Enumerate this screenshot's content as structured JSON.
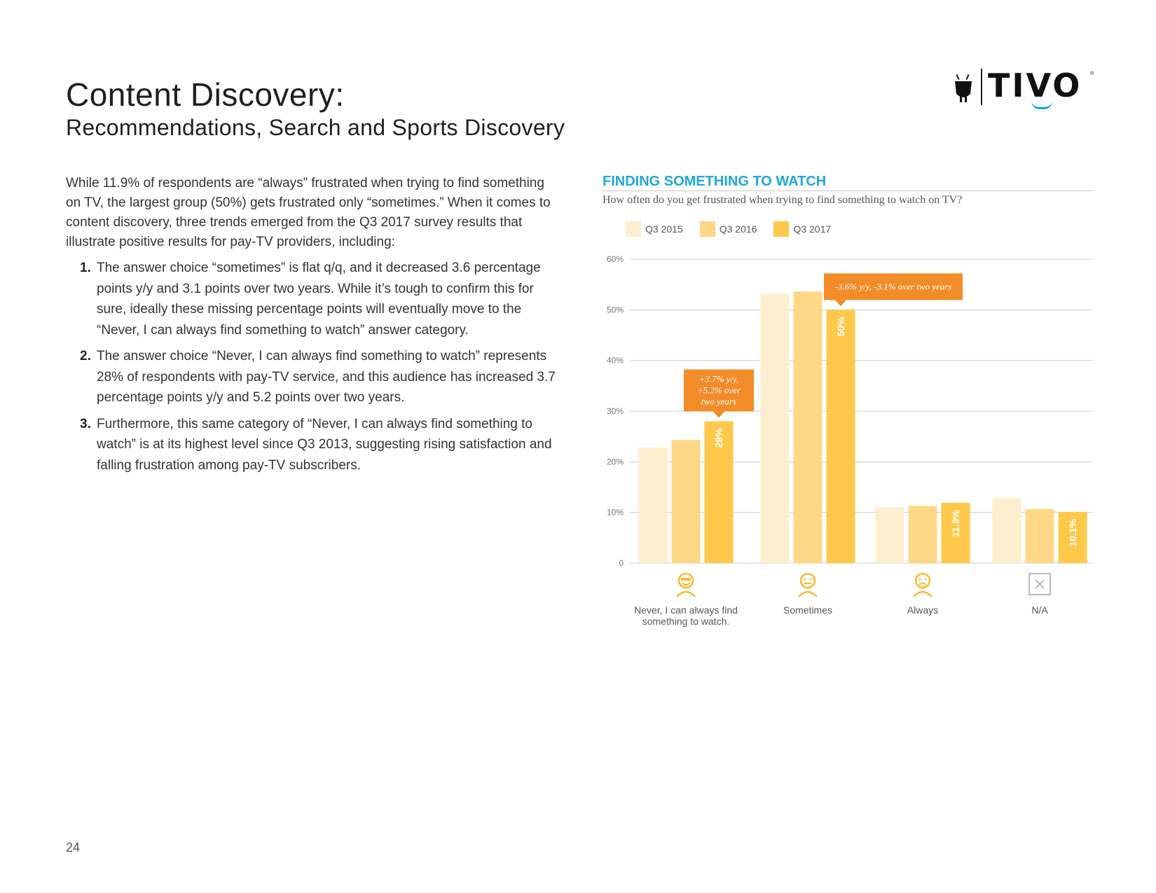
{
  "page": {
    "title": "Content Discovery:",
    "subtitle": "Recommendations, Search and Sports Discovery",
    "page_number": "24"
  },
  "logo": {
    "text": "TIVO",
    "tm": "®",
    "icon": "tivo-mascot-icon"
  },
  "body": {
    "intro": "While 11.9% of respondents are “always” frustrated when trying to find something on TV, the largest group (50%) gets frustrated only “sometimes.” When it comes to content discovery, three trends emerged from the Q3 2017 survey results that illustrate positive results for pay-TV providers, including:",
    "items": [
      {
        "num": "1.",
        "text": "The answer choice “sometimes” is flat q/q, and it decreased 3.6 percentage points y/y and 3.1 points over two years. While it’s tough to confirm this for sure, ideally these missing percentage points will eventually move to the “Never, I can always find something to watch” answer category."
      },
      {
        "num": "2.",
        "text": "The answer choice “Never, I can always find something to watch” represents 28% of respondents with pay-TV service, and this audience has increased 3.7 percentage points y/y and 5.2 points over two years."
      },
      {
        "num": "3.",
        "text": "Furthermore, this same category of “Never, I can always find something to watch” is at its highest level since Q3 2013, suggesting rising satisfaction and falling frustration among pay-TV subscribers."
      }
    ]
  },
  "chart_data": {
    "type": "bar",
    "title": "FINDING SOMETHING TO WATCH",
    "subtitle": "How often do you get frustrated when trying to find something to watch on TV?",
    "categories": [
      "Never, I can always find something to watch.",
      "Sometimes",
      "Always",
      "N/A"
    ],
    "category_icons": [
      "happy-face-icon",
      "neutral-face-icon",
      "sad-face-icon",
      "x-box-icon"
    ],
    "series": [
      {
        "name": "Q3 2015",
        "color": "#fdeecf",
        "values": [
          22.8,
          53.1,
          11.0,
          12.9
        ]
      },
      {
        "name": "Q3 2016",
        "color": "#fed887",
        "values": [
          24.3,
          53.6,
          11.3,
          10.7
        ]
      },
      {
        "name": "Q3 2017",
        "color": "#fec84a",
        "values": [
          28.0,
          50.0,
          11.9,
          10.1
        ]
      }
    ],
    "data_labels": [
      "28%",
      "50%",
      "11.9%",
      "10.1%"
    ],
    "y_ticks": [
      "0",
      "10%",
      "20%",
      "30%",
      "40%",
      "50%",
      "60%"
    ],
    "ylim": [
      0,
      60
    ],
    "grid": true,
    "legend_position": "top-left",
    "callouts": [
      {
        "category": 0,
        "text_lines": [
          "+3.7% y/y,",
          "+5.2% over",
          "two years"
        ]
      },
      {
        "category": 1,
        "text_lines": [
          "-3.6% y/y, -3.1% over two years"
        ]
      }
    ],
    "callout_color": "#f28c28",
    "grid_color": "#cccccc"
  }
}
